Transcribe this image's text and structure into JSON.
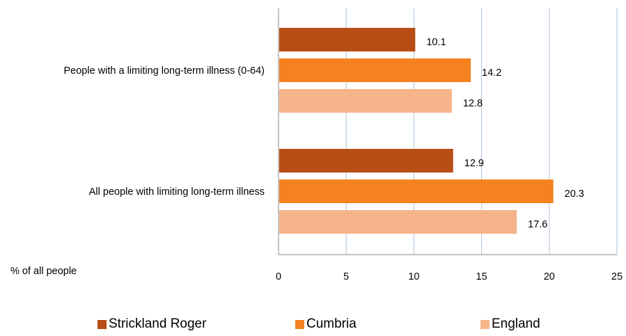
{
  "chart_data": {
    "type": "bar",
    "orientation": "horizontal",
    "categories": [
      "People with a limiting long-term illness (0-64)",
      "All people with limiting long-term illness"
    ],
    "series": [
      {
        "name": "Strickland Roger",
        "color": "#B84E16",
        "values": [
          10.1,
          12.9
        ],
        "labels": [
          "10.1",
          "12.9"
        ]
      },
      {
        "name": "Cumbria",
        "color": "#F5821F",
        "values": [
          14.2,
          20.3
        ],
        "labels": [
          "14.2",
          "20.3"
        ]
      },
      {
        "name": "England",
        "color": "#F7B48A",
        "values": [
          12.8,
          17.6
        ],
        "labels": [
          "12.8",
          "17.6"
        ]
      }
    ],
    "xlabel": "% of all people",
    "xlim": [
      0,
      25
    ],
    "xticks": [
      "0",
      "5",
      "10",
      "15",
      "20",
      "25"
    ],
    "grid": true,
    "legend_position": "bottom"
  }
}
